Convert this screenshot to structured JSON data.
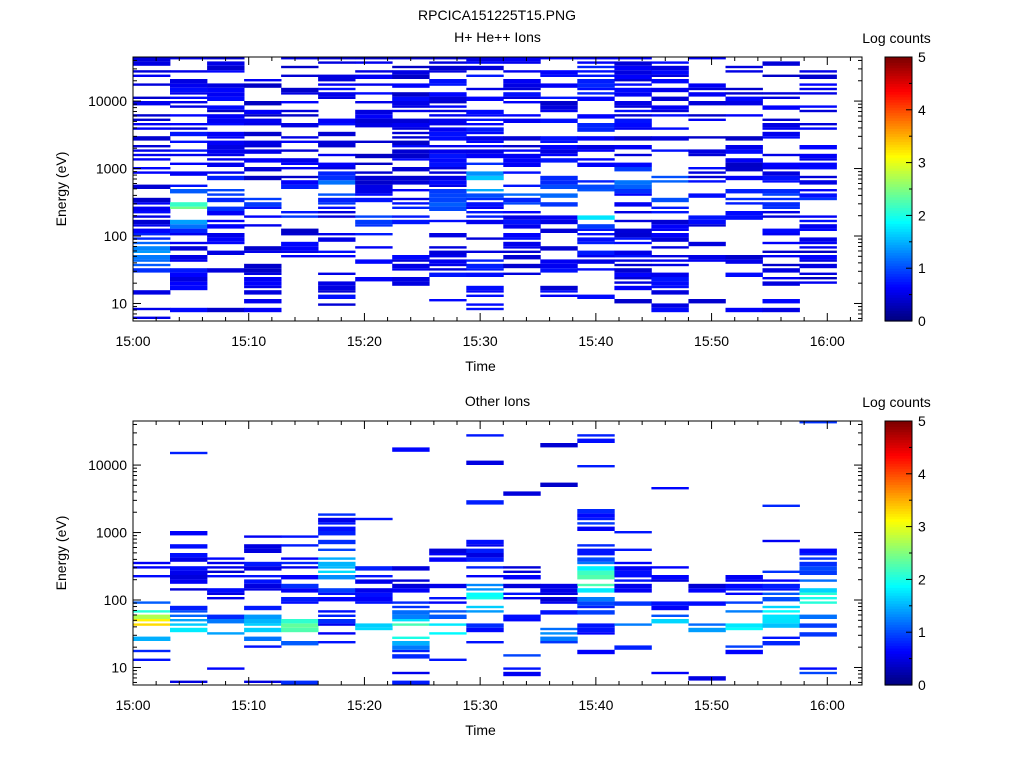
{
  "figure_title": "RPCICA151225T15.PNG",
  "chart_data": [
    {
      "type": "heatmap",
      "title": "H+ He++ Ions",
      "xlabel": "Time",
      "ylabel": "Energy (eV)",
      "x_ticks": [
        "15:00",
        "15:10",
        "15:20",
        "15:30",
        "15:40",
        "15:50",
        "16:00"
      ],
      "y_ticks": [
        "10",
        "100",
        "1000",
        "10000"
      ],
      "y_scale": "log",
      "ylim": [
        5.5,
        45000
      ],
      "xlim_minutes": [
        0,
        63
      ],
      "colorbar": {
        "label": "Log counts",
        "ticks": [
          "0",
          "1",
          "2",
          "3",
          "4",
          "5"
        ],
        "range": [
          0,
          5
        ],
        "colormap": "jet"
      },
      "time_bins_minutes": [
        0,
        3.2,
        6.4,
        9.6,
        12.8,
        16.0,
        19.2,
        22.4,
        25.6,
        28.8,
        32.0,
        35.2,
        38.4,
        41.6,
        44.8,
        48.0,
        51.2,
        54.4,
        57.6,
        60.8
      ],
      "profiles": [
        {
          "bin": 0,
          "peak_energy": 50,
          "peak_level": 1.4,
          "bg_level": 0.5,
          "fill": 0.72,
          "low_cut": 20
        },
        {
          "bin": 1,
          "peak_energy": 250,
          "peak_level": 2.4,
          "bg_level": 0.6,
          "fill": 0.7,
          "low_cut": 15
        },
        {
          "bin": 2,
          "peak_energy": 400,
          "peak_level": 1.0,
          "bg_level": 0.5,
          "fill": 0.68,
          "low_cut": 40
        },
        {
          "bin": 3,
          "peak_energy": 300,
          "peak_level": 0.9,
          "bg_level": 0.45,
          "fill": 0.62,
          "low_cut": 7
        },
        {
          "bin": 4,
          "peak_energy": 300,
          "peak_level": 1.0,
          "bg_level": 0.5,
          "fill": 0.62,
          "low_cut": 25
        },
        {
          "bin": 5,
          "peak_energy": 500,
          "peak_level": 1.1,
          "bg_level": 0.55,
          "fill": 0.62,
          "low_cut": 7
        },
        {
          "bin": 6,
          "peak_energy": 200,
          "peak_level": 0.9,
          "bg_level": 0.5,
          "fill": 0.55,
          "low_cut": 11
        },
        {
          "bin": 7,
          "peak_energy": 200,
          "peak_level": 0.9,
          "bg_level": 0.5,
          "fill": 0.6,
          "low_cut": 16
        },
        {
          "bin": 8,
          "peak_energy": 300,
          "peak_level": 1.0,
          "bg_level": 0.55,
          "fill": 0.58,
          "low_cut": 25
        },
        {
          "bin": 9,
          "peak_energy": 600,
          "peak_level": 1.6,
          "bg_level": 0.6,
          "fill": 0.62,
          "low_cut": 7
        },
        {
          "bin": 10,
          "peak_energy": 400,
          "peak_level": 1.0,
          "bg_level": 0.55,
          "fill": 0.6,
          "low_cut": 30
        },
        {
          "bin": 11,
          "peak_energy": 400,
          "peak_level": 1.0,
          "bg_level": 0.55,
          "fill": 0.58,
          "low_cut": 12
        },
        {
          "bin": 12,
          "peak_energy": 250,
          "peak_level": 2.1,
          "bg_level": 0.65,
          "fill": 0.7,
          "low_cut": 30
        },
        {
          "bin": 13,
          "peak_energy": 700,
          "peak_level": 1.2,
          "bg_level": 0.55,
          "fill": 0.62,
          "low_cut": 16
        },
        {
          "bin": 14,
          "peak_energy": 500,
          "peak_level": 1.1,
          "bg_level": 0.55,
          "fill": 0.6,
          "low_cut": 7
        },
        {
          "bin": 15,
          "peak_energy": 300,
          "peak_level": 0.9,
          "bg_level": 0.5,
          "fill": 0.55,
          "low_cut": 40
        },
        {
          "bin": 16,
          "peak_energy": 300,
          "peak_level": 0.9,
          "bg_level": 0.5,
          "fill": 0.55,
          "low_cut": 20
        },
        {
          "bin": 17,
          "peak_energy": 400,
          "peak_level": 1.0,
          "bg_level": 0.5,
          "fill": 0.6,
          "low_cut": 9
        },
        {
          "bin": 18,
          "peak_energy": 300,
          "peak_level": 0.9,
          "bg_level": 0.5,
          "fill": 0.6,
          "low_cut": 16
        }
      ]
    },
    {
      "type": "heatmap",
      "title": "Other Ions",
      "xlabel": "Time",
      "ylabel": "Energy (eV)",
      "x_ticks": [
        "15:00",
        "15:10",
        "15:20",
        "15:30",
        "15:40",
        "15:50",
        "16:00"
      ],
      "y_ticks": [
        "10",
        "100",
        "1000",
        "10000"
      ],
      "y_scale": "log",
      "ylim": [
        5.5,
        45000
      ],
      "xlim_minutes": [
        0,
        63
      ],
      "colorbar": {
        "label": "Log counts",
        "ticks": [
          "0",
          "1",
          "2",
          "3",
          "4",
          "5"
        ],
        "range": [
          0,
          5
        ],
        "colormap": "jet"
      },
      "time_bins_minutes": [
        0,
        3.2,
        6.4,
        9.6,
        12.8,
        16.0,
        19.2,
        22.4,
        25.6,
        28.8,
        32.0,
        35.2,
        38.4,
        41.6,
        44.8,
        48.0,
        51.2,
        54.4,
        57.6,
        60.8
      ],
      "profiles": [
        {
          "bin": 0,
          "peak_energy": 45,
          "peak_level": 3.2,
          "bg_level": 0.6,
          "fill": 0.6,
          "low_cut": 16,
          "top": 320
        },
        {
          "bin": 1,
          "peak_energy": 35,
          "peak_level": 1.8,
          "bg_level": 0.6,
          "fill": 0.6,
          "low_cut": 22,
          "top": 500
        },
        {
          "bin": 2,
          "peak_energy": 35,
          "peak_level": 1.5,
          "bg_level": 0.55,
          "fill": 0.55,
          "low_cut": 22,
          "top": 450
        },
        {
          "bin": 3,
          "peak_energy": 40,
          "peak_level": 1.7,
          "bg_level": 0.6,
          "fill": 0.55,
          "low_cut": 16,
          "top": 700
        },
        {
          "bin": 4,
          "peak_energy": 40,
          "peak_level": 2.3,
          "bg_level": 0.7,
          "fill": 0.62,
          "low_cut": 22,
          "top": 900
        },
        {
          "bin": 5,
          "peak_energy": 300,
          "peak_level": 1.7,
          "bg_level": 0.7,
          "fill": 0.65,
          "low_cut": 22,
          "top": 1800
        },
        {
          "bin": 6,
          "peak_energy": 40,
          "peak_level": 1.6,
          "bg_level": 0.6,
          "fill": 0.55,
          "low_cut": 22,
          "top": 500
        },
        {
          "bin": 7,
          "peak_energy": 35,
          "peak_level": 2.3,
          "bg_level": 0.6,
          "fill": 0.55,
          "low_cut": 16,
          "top": 300
        },
        {
          "bin": 8,
          "peak_energy": 35,
          "peak_level": 1.9,
          "bg_level": 0.6,
          "fill": 0.55,
          "low_cut": 22,
          "top": 600
        },
        {
          "bin": 9,
          "peak_energy": 100,
          "peak_level": 1.9,
          "bg_level": 0.6,
          "fill": 0.6,
          "low_cut": 16,
          "top": 900
        },
        {
          "bin": 10,
          "peak_energy": 25,
          "peak_level": 1.9,
          "bg_level": 0.55,
          "fill": 0.5,
          "low_cut": 20,
          "top": 400
        },
        {
          "bin": 11,
          "peak_energy": 30,
          "peak_level": 1.2,
          "bg_level": 0.5,
          "fill": 0.5,
          "low_cut": 22,
          "top": 200
        },
        {
          "bin": 12,
          "peak_energy": 200,
          "peak_level": 2.4,
          "bg_level": 0.75,
          "fill": 0.66,
          "low_cut": 25,
          "top": 2200
        },
        {
          "bin": 13,
          "peak_energy": 50,
          "peak_level": 1.2,
          "bg_level": 0.6,
          "fill": 0.55,
          "low_cut": 25,
          "top": 600
        },
        {
          "bin": 14,
          "peak_energy": 35,
          "peak_level": 2.1,
          "bg_level": 0.55,
          "fill": 0.5,
          "low_cut": 25,
          "top": 300
        },
        {
          "bin": 15,
          "peak_energy": 35,
          "peak_level": 1.4,
          "bg_level": 0.55,
          "fill": 0.5,
          "low_cut": 22,
          "top": 160
        },
        {
          "bin": 16,
          "peak_energy": 40,
          "peak_level": 1.9,
          "bg_level": 0.65,
          "fill": 0.6,
          "low_cut": 16,
          "top": 220
        },
        {
          "bin": 17,
          "peak_energy": 60,
          "peak_level": 1.9,
          "bg_level": 0.7,
          "fill": 0.62,
          "low_cut": 22,
          "top": 260
        },
        {
          "bin": 18,
          "peak_energy": 100,
          "peak_level": 2.1,
          "bg_level": 0.8,
          "fill": 0.68,
          "low_cut": 22,
          "top": 600
        }
      ]
    }
  ]
}
